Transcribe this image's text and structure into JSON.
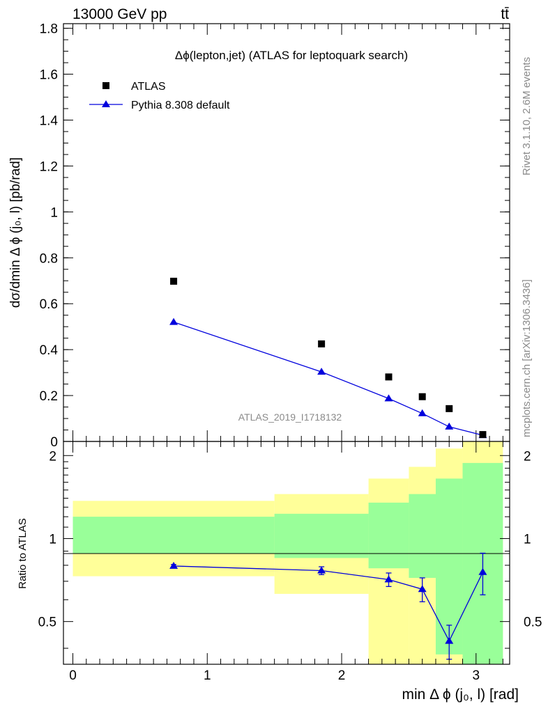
{
  "header": {
    "energy_label": "13000 GeV pp",
    "process_label": "tt̄"
  },
  "side_text": {
    "rivet": "Rivet 3.1.10,  2.6M events",
    "mcplots": "mcplots.cern.ch [arXiv:1306.3436]"
  },
  "analysis_id": "ATLAS_2019_I1718132",
  "colors": {
    "mc": "#0000dd",
    "data": "#000000",
    "band_outer": "#ffff99",
    "band_inner": "#99ff99"
  },
  "chart_data": [
    {
      "type": "scatter",
      "title": "Δϕ(lepton,jet) (ATLAS for leptoquark search)",
      "xlabel": "min Δ ϕ (j₀, l) [rad]",
      "ylabel": "dσ/dmin Δ ϕ (j₀, l) [pb/rad]",
      "xlim": [
        -0.07,
        3.25
      ],
      "ylim": [
        0,
        1.82
      ],
      "yticks": [
        "0",
        "0.2",
        "0.4",
        "0.6",
        "0.8",
        "1",
        "1.2",
        "1.4",
        "1.6",
        "1.8"
      ],
      "legend_position": "top-left",
      "series": [
        {
          "name": "ATLAS",
          "marker": "square",
          "x": [
            0.75,
            1.85,
            2.35,
            2.6,
            2.8,
            3.05
          ],
          "y": [
            0.698,
            0.425,
            0.281,
            0.195,
            0.143,
            0.03
          ]
        },
        {
          "name": "Pythia 8.308 default",
          "marker": "triangle",
          "x": [
            0.75,
            1.85,
            2.35,
            2.6,
            2.8,
            3.05
          ],
          "y": [
            0.52,
            0.303,
            0.187,
            0.122,
            0.064,
            0.027
          ]
        }
      ]
    },
    {
      "type": "line",
      "ylabel": "Ratio to ATLAS",
      "xlabel": "min Δ ϕ (j₀, l) [rad]",
      "xlim": [
        -0.07,
        3.25
      ],
      "ylim": [
        0.35,
        2.25
      ],
      "xticks": [
        "0",
        "1",
        "2",
        "3"
      ],
      "yticks": [
        "0.5",
        "1",
        "2"
      ],
      "bins": [
        {
          "lo": 0.0,
          "hi": 1.5,
          "outer": [
            0.73,
            1.37
          ],
          "inner": [
            0.88,
            1.2
          ]
        },
        {
          "lo": 1.5,
          "hi": 2.2,
          "outer": [
            0.63,
            1.45
          ],
          "inner": [
            0.85,
            1.23
          ]
        },
        {
          "lo": 2.2,
          "hi": 2.5,
          "outer": [
            0.35,
            1.65
          ],
          "inner": [
            0.78,
            1.35
          ]
        },
        {
          "lo": 2.5,
          "hi": 2.7,
          "outer": [
            0.35,
            1.82
          ],
          "inner": [
            0.72,
            1.45
          ]
        },
        {
          "lo": 2.7,
          "hi": 2.9,
          "outer": [
            0.35,
            2.12
          ],
          "inner": [
            0.38,
            1.65
          ]
        },
        {
          "lo": 2.9,
          "hi": 3.2,
          "outer": [
            0.35,
            2.25
          ],
          "inner": [
            0.35,
            1.88
          ]
        }
      ],
      "series": [
        {
          "name": "Pythia 8.308 default",
          "x": [
            0.75,
            1.85,
            2.35,
            2.6,
            2.8,
            3.05
          ],
          "y": [
            0.795,
            0.765,
            0.71,
            0.655,
            0.425,
            0.755
          ],
          "err": [
            0.01,
            0.025,
            0.04,
            0.065,
            0.06,
            0.13
          ]
        }
      ]
    }
  ]
}
